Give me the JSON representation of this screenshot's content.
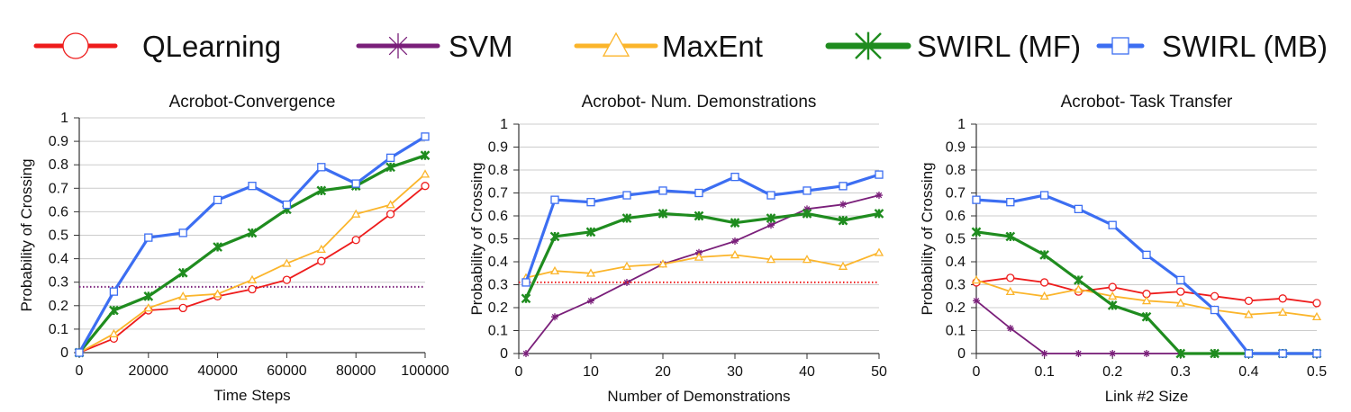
{
  "legend": [
    {
      "label": "QLearning",
      "color": "#ee1c1c",
      "marker": "circle"
    },
    {
      "label": "SVM",
      "color": "#7a1f7a",
      "marker": "asterisk"
    },
    {
      "label": "MaxEnt",
      "color": "#fbb52b",
      "marker": "triangle"
    },
    {
      "label": "SWIRL (MF)",
      "color": "#1f8c1f",
      "marker": "x"
    },
    {
      "label": "SWIRL (MB)",
      "color": "#3c6ef2",
      "marker": "square"
    }
  ],
  "chart_data": [
    {
      "type": "line",
      "title": "Acrobot-Convergence",
      "xlabel": "Time Steps",
      "ylabel": "Probability of Crossing",
      "xlim": [
        0,
        100000
      ],
      "ylim": [
        0,
        1
      ],
      "xticks": [
        0,
        20000,
        40000,
        60000,
        80000,
        100000
      ],
      "xtick_labels": [
        "0",
        "20000",
        "40000",
        "60000",
        "80000",
        "100000"
      ],
      "yticks": [
        0,
        0.1,
        0.2,
        0.3,
        0.4,
        0.5,
        0.6,
        0.7,
        0.8,
        0.9,
        1
      ],
      "ytick_labels": [
        "0",
        "0.1",
        "0.2",
        "0.3",
        "0.4",
        "0.5",
        "0.6",
        "0.7",
        "0.8",
        "0.9",
        "1"
      ],
      "grid": true,
      "series": [
        {
          "name": "QLearning",
          "x": [
            0,
            10000,
            20000,
            30000,
            40000,
            50000,
            60000,
            70000,
            80000,
            90000,
            100000
          ],
          "values": [
            0,
            0.06,
            0.18,
            0.19,
            0.24,
            0.27,
            0.31,
            0.39,
            0.48,
            0.59,
            0.71
          ]
        },
        {
          "name": "SVM",
          "style": "dotted",
          "x": [
            0,
            100000
          ],
          "values": [
            0.28,
            0.28
          ]
        },
        {
          "name": "MaxEnt",
          "x": [
            0,
            10000,
            20000,
            30000,
            40000,
            50000,
            60000,
            70000,
            80000,
            90000,
            100000
          ],
          "values": [
            0,
            0.08,
            0.19,
            0.24,
            0.25,
            0.31,
            0.38,
            0.44,
            0.59,
            0.63,
            0.76
          ]
        },
        {
          "name": "SWIRL (MF)",
          "x": [
            0,
            10000,
            20000,
            30000,
            40000,
            50000,
            60000,
            70000,
            80000,
            90000,
            100000
          ],
          "values": [
            0,
            0.18,
            0.24,
            0.34,
            0.45,
            0.51,
            0.61,
            0.69,
            0.71,
            0.79,
            0.84
          ]
        },
        {
          "name": "SWIRL (MB)",
          "x": [
            0,
            10000,
            20000,
            30000,
            40000,
            50000,
            60000,
            70000,
            80000,
            90000,
            100000
          ],
          "values": [
            0,
            0.26,
            0.49,
            0.51,
            0.65,
            0.71,
            0.63,
            0.79,
            0.72,
            0.83,
            0.92
          ]
        }
      ]
    },
    {
      "type": "line",
      "title": "Acrobot- Num. Demonstrations",
      "xlabel": "Number of Demonstrations",
      "ylabel": "Probability of Crossing",
      "xlim": [
        0,
        50
      ],
      "ylim": [
        0,
        1
      ],
      "xticks": [
        0,
        10,
        20,
        30,
        40,
        50
      ],
      "xtick_labels": [
        "0",
        "10",
        "20",
        "30",
        "40",
        "50"
      ],
      "yticks": [
        0,
        0.1,
        0.2,
        0.3,
        0.4,
        0.5,
        0.6,
        0.7,
        0.8,
        0.9,
        1
      ],
      "ytick_labels": [
        "0",
        "0.1",
        "0.2",
        "0.3",
        "0.4",
        "0.5",
        "0.6",
        "0.7",
        "0.8",
        "0.9",
        "1"
      ],
      "grid": true,
      "series": [
        {
          "name": "QLearning",
          "style": "dotted",
          "x": [
            0,
            50
          ],
          "values": [
            0.31,
            0.31
          ]
        },
        {
          "name": "SVM",
          "x": [
            1,
            5,
            10,
            15,
            20,
            25,
            30,
            35,
            40,
            45,
            50
          ],
          "values": [
            0,
            0.16,
            0.23,
            0.31,
            0.39,
            0.44,
            0.49,
            0.56,
            0.63,
            0.65,
            0.69
          ]
        },
        {
          "name": "MaxEnt",
          "x": [
            1,
            5,
            10,
            15,
            20,
            25,
            30,
            35,
            40,
            45,
            50
          ],
          "values": [
            0.33,
            0.36,
            0.35,
            0.38,
            0.39,
            0.42,
            0.43,
            0.41,
            0.41,
            0.38,
            0.44
          ]
        },
        {
          "name": "SWIRL (MF)",
          "x": [
            1,
            5,
            10,
            15,
            20,
            25,
            30,
            35,
            40,
            45,
            50
          ],
          "values": [
            0.24,
            0.51,
            0.53,
            0.59,
            0.61,
            0.6,
            0.57,
            0.59,
            0.61,
            0.58,
            0.61
          ]
        },
        {
          "name": "SWIRL (MB)",
          "x": [
            1,
            5,
            10,
            15,
            20,
            25,
            30,
            35,
            40,
            45,
            50
          ],
          "values": [
            0.31,
            0.67,
            0.66,
            0.69,
            0.71,
            0.7,
            0.77,
            0.69,
            0.71,
            0.73,
            0.78
          ]
        }
      ]
    },
    {
      "type": "line",
      "title": "Acrobot- Task Transfer",
      "xlabel": "Link #2 Size",
      "ylabel": "Probability of Crossing",
      "xlim": [
        0,
        0.5
      ],
      "ylim": [
        0,
        1
      ],
      "xticks": [
        0,
        0.1,
        0.2,
        0.3,
        0.4,
        0.5
      ],
      "xtick_labels": [
        "0",
        "0.1",
        "0.2",
        "0.3",
        "0.4",
        "0.5"
      ],
      "yticks": [
        0,
        0.1,
        0.2,
        0.3,
        0.4,
        0.5,
        0.6,
        0.7,
        0.8,
        0.9,
        1
      ],
      "ytick_labels": [
        "0",
        "0.1",
        "0.2",
        "0.3",
        "0.4",
        "0.5",
        "0.6",
        "0.7",
        "0.8",
        "0.9",
        "1"
      ],
      "grid": true,
      "series": [
        {
          "name": "QLearning",
          "x": [
            0,
            0.05,
            0.1,
            0.15,
            0.2,
            0.25,
            0.3,
            0.35,
            0.4,
            0.45,
            0.5
          ],
          "values": [
            0.31,
            0.33,
            0.31,
            0.27,
            0.29,
            0.26,
            0.27,
            0.25,
            0.23,
            0.24,
            0.22
          ]
        },
        {
          "name": "SVM",
          "x": [
            0,
            0.05,
            0.1,
            0.15,
            0.2,
            0.25,
            0.3,
            0.35,
            0.4,
            0.45,
            0.5
          ],
          "values": [
            0.23,
            0.11,
            0,
            0,
            0,
            0,
            0,
            0,
            0,
            0,
            0
          ]
        },
        {
          "name": "MaxEnt",
          "x": [
            0,
            0.05,
            0.1,
            0.15,
            0.2,
            0.25,
            0.3,
            0.35,
            0.4,
            0.45,
            0.5
          ],
          "values": [
            0.32,
            0.27,
            0.25,
            0.28,
            0.25,
            0.23,
            0.22,
            0.19,
            0.17,
            0.18,
            0.16
          ]
        },
        {
          "name": "SWIRL (MF)",
          "x": [
            0,
            0.05,
            0.1,
            0.15,
            0.2,
            0.25,
            0.3,
            0.35,
            0.4,
            0.45,
            0.5
          ],
          "values": [
            0.53,
            0.51,
            0.43,
            0.32,
            0.21,
            0.16,
            0,
            0,
            0,
            0,
            0
          ]
        },
        {
          "name": "SWIRL (MB)",
          "x": [
            0,
            0.05,
            0.1,
            0.15,
            0.2,
            0.25,
            0.3,
            0.35,
            0.4,
            0.45,
            0.5
          ],
          "values": [
            0.67,
            0.66,
            0.69,
            0.63,
            0.56,
            0.43,
            0.32,
            0.19,
            0,
            0,
            0
          ]
        }
      ]
    }
  ]
}
